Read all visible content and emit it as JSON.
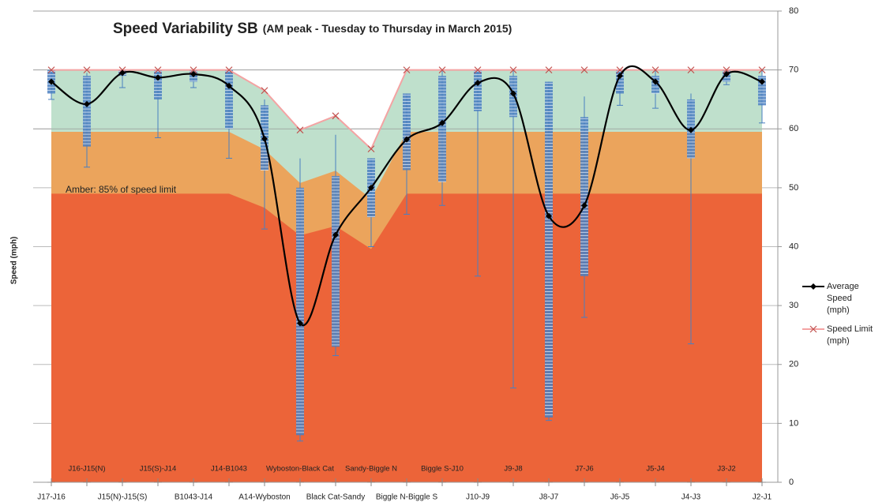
{
  "chart_data": {
    "type": "line",
    "title": "Speed Variability SB",
    "subtitle": "(AM peak - Tuesday to Thursday in March 2015)",
    "y_label": "Speed (mph)",
    "annotation": "Amber: 85% of speed limit",
    "categories": [
      "J17-J16",
      "J16-J15(N)",
      "J15(N)-J15(S)",
      "J15(S)-J14",
      "B1043-J14",
      "J14-B1043",
      "A14-Wyboston",
      "Wyboston-Black Cat",
      "Black Cat-Sandy",
      "Sandy-Biggle N",
      "Biggle N-Biggle S",
      "Biggle S-J10",
      "J10-J9",
      "J9-J8",
      "J8-J7",
      "J7-J6",
      "J6-J5",
      "J5-J4",
      "J4-J3",
      "J3-J2",
      "J2-J1"
    ],
    "series": [
      {
        "name": "Average Speed (mph)",
        "color": "#000000",
        "smooth": true,
        "marker": "diamond",
        "values": [
          68,
          64.2,
          69.5,
          68.7,
          69.3,
          67.3,
          58.3,
          27,
          42,
          50,
          58.2,
          61,
          67.8,
          66,
          45.2,
          47,
          69,
          68,
          59.8,
          69.3,
          68
        ]
      },
      {
        "name": "Speed Limit (mph)",
        "color": "#f4a3a3",
        "smooth": false,
        "marker": "x",
        "values": [
          70,
          70,
          70,
          70,
          70,
          70,
          66.5,
          59.8,
          62.2,
          56.6,
          70,
          70,
          70,
          70,
          70,
          70,
          70,
          70,
          70,
          70,
          70
        ]
      }
    ],
    "bands": [
      {
        "color": "#bfe0cc",
        "values": [
          70,
          70,
          70,
          70,
          70,
          70,
          66.5,
          59.8,
          62.2,
          56.6,
          70,
          70,
          70,
          70,
          70,
          70,
          70,
          70,
          70,
          70,
          70
        ]
      },
      {
        "color": "#eba45c",
        "values": [
          59.5,
          59.5,
          59.5,
          59.5,
          59.5,
          59.5,
          56.5,
          50.8,
          52.9,
          48.1,
          59.5,
          59.5,
          59.5,
          59.5,
          59.5,
          59.5,
          59.5,
          59.5,
          59.5,
          59.5,
          59.5
        ]
      },
      {
        "color": "#ec6439",
        "values": [
          49,
          49,
          49,
          49,
          49,
          49,
          46.6,
          41.9,
          43.5,
          39.6,
          49,
          49,
          49,
          49,
          49,
          49,
          49,
          49,
          49,
          49,
          49
        ]
      }
    ],
    "distribution": {
      "color": "#4a7fc1",
      "low": [
        65,
        53.5,
        67,
        58.5,
        67,
        55,
        43,
        7,
        21.5,
        40,
        45.5,
        47,
        35,
        16,
        10.5,
        28,
        64,
        63.5,
        23.5,
        67.5,
        61
      ],
      "high": [
        70,
        69.5,
        70,
        70,
        70,
        70,
        65,
        55,
        59,
        55,
        66,
        70,
        70,
        70,
        68,
        65.5,
        70,
        70,
        66,
        70,
        70
      ],
      "dense_low": [
        66,
        57,
        69,
        65,
        68,
        60,
        53,
        8,
        23,
        45,
        53,
        51,
        63,
        62,
        11,
        35,
        66,
        66,
        55,
        68,
        64
      ],
      "dense_high": [
        70,
        69,
        70,
        70,
        70,
        70,
        64,
        50,
        52,
        55,
        66,
        69,
        70,
        69,
        68,
        62,
        70,
        69,
        65,
        70,
        69
      ]
    },
    "ylim": [
      0,
      80
    ],
    "yticks": [
      0,
      10,
      20,
      30,
      40,
      50,
      60,
      70,
      80
    ],
    "y_axis_side": "right",
    "grid": true,
    "legend": "right"
  }
}
